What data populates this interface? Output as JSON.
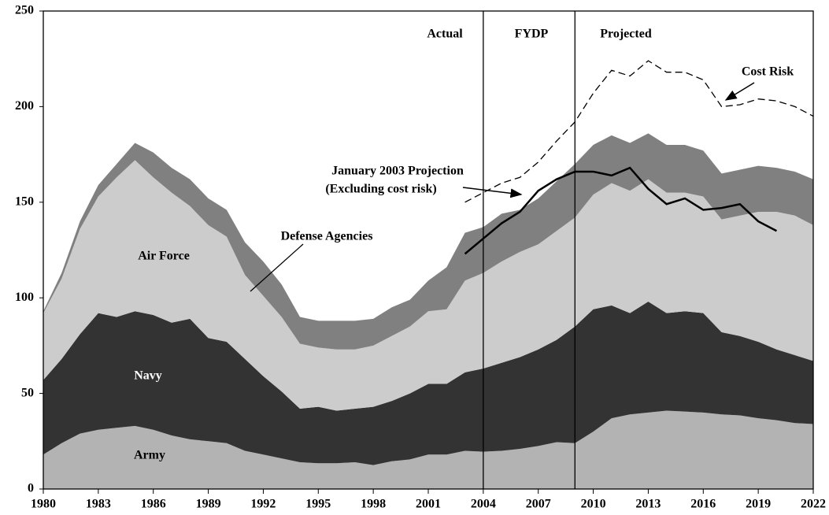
{
  "chart_data": {
    "type": "stacked_area",
    "x": [
      1980,
      1981,
      1982,
      1983,
      1984,
      1985,
      1986,
      1987,
      1988,
      1989,
      1990,
      1991,
      1992,
      1993,
      1994,
      1995,
      1996,
      1997,
      1998,
      1999,
      2000,
      2001,
      2002,
      2003,
      2004,
      2005,
      2006,
      2007,
      2008,
      2009,
      2010,
      2011,
      2012,
      2013,
      2014,
      2015,
      2016,
      2017,
      2018,
      2019,
      2020,
      2021,
      2022
    ],
    "series": [
      {
        "name": "Army",
        "color": "#b3b3b3",
        "values": [
          18,
          24,
          29,
          31,
          32,
          33,
          31,
          28,
          26,
          25,
          24,
          20,
          18,
          16,
          14,
          13.5,
          13.5,
          14,
          12.5,
          14.5,
          15.5,
          18,
          18,
          20,
          19.5,
          20,
          21,
          22.5,
          24.5,
          24,
          30,
          37,
          39,
          40,
          41,
          40.5,
          40,
          39,
          38.5,
          37,
          36,
          34.5,
          34
        ]
      },
      {
        "name": "Navy",
        "color": "#333333",
        "values": [
          39,
          44,
          52,
          61,
          58,
          60,
          60,
          59,
          63,
          54,
          53,
          48,
          41,
          35,
          28,
          29.5,
          27.5,
          28,
          30.5,
          31.5,
          34.5,
          37,
          37,
          41,
          43.5,
          46,
          48,
          50.5,
          53.5,
          61,
          64,
          59,
          53,
          58,
          51,
          52.5,
          52,
          43,
          41.5,
          40,
          37,
          35.5,
          33
        ]
      },
      {
        "name": "Air Force",
        "color": "#cccccc",
        "values": [
          35,
          42,
          55,
          61,
          73,
          79,
          72,
          68,
          59,
          59,
          55,
          44,
          42,
          39,
          34,
          31,
          32,
          31,
          32,
          34,
          35,
          38,
          39,
          48,
          50,
          53,
          55,
          55,
          57,
          57,
          60,
          64,
          64,
          64,
          63,
          62,
          61,
          59,
          63,
          68,
          72,
          73,
          71
        ]
      },
      {
        "name": "Defense Agencies",
        "color": "#808080",
        "values": [
          1,
          3,
          4,
          6,
          7,
          9,
          13,
          13,
          14,
          14,
          14,
          17,
          18,
          17,
          14,
          14,
          15,
          15,
          14,
          15,
          14,
          16,
          22,
          25,
          24,
          25,
          22,
          24,
          26,
          28,
          26,
          25,
          25,
          24,
          25,
          25,
          24,
          24,
          24,
          24,
          23,
          23,
          24
        ]
      }
    ],
    "lines": [
      {
        "name": [
          "January 2003 Projection",
          "(Excluding cost risk)"
        ],
        "color": "#000000",
        "dashed": false,
        "values": [
          null,
          null,
          null,
          null,
          null,
          null,
          null,
          null,
          null,
          null,
          null,
          null,
          null,
          null,
          null,
          null,
          null,
          null,
          null,
          null,
          null,
          null,
          null,
          123,
          131,
          139,
          145,
          156,
          162,
          166,
          166,
          164,
          168,
          157,
          149,
          152,
          146,
          147,
          149,
          140,
          135,
          null,
          null
        ]
      },
      {
        "name": "Cost Risk",
        "color": "#000000",
        "dashed": true,
        "values": [
          null,
          null,
          null,
          null,
          null,
          null,
          null,
          null,
          null,
          null,
          null,
          null,
          null,
          null,
          null,
          null,
          null,
          null,
          null,
          null,
          null,
          null,
          null,
          150,
          155,
          160,
          163,
          171,
          182,
          192,
          207,
          219,
          216,
          224,
          218,
          218,
          214,
          200,
          201,
          204,
          203,
          200,
          195
        ]
      }
    ],
    "periods": [
      "Actual",
      "FYDP",
      "Projected"
    ],
    "period_boundaries": [
      2004,
      2009
    ],
    "xlim": [
      1980,
      2022
    ],
    "xticks": [
      1980,
      1983,
      1986,
      1989,
      1992,
      1995,
      1998,
      2001,
      2004,
      2007,
      2010,
      2013,
      2016,
      2019,
      2022
    ],
    "ylim": [
      0,
      250
    ],
    "yticks": [
      0,
      50,
      100,
      150,
      200,
      250
    ]
  }
}
